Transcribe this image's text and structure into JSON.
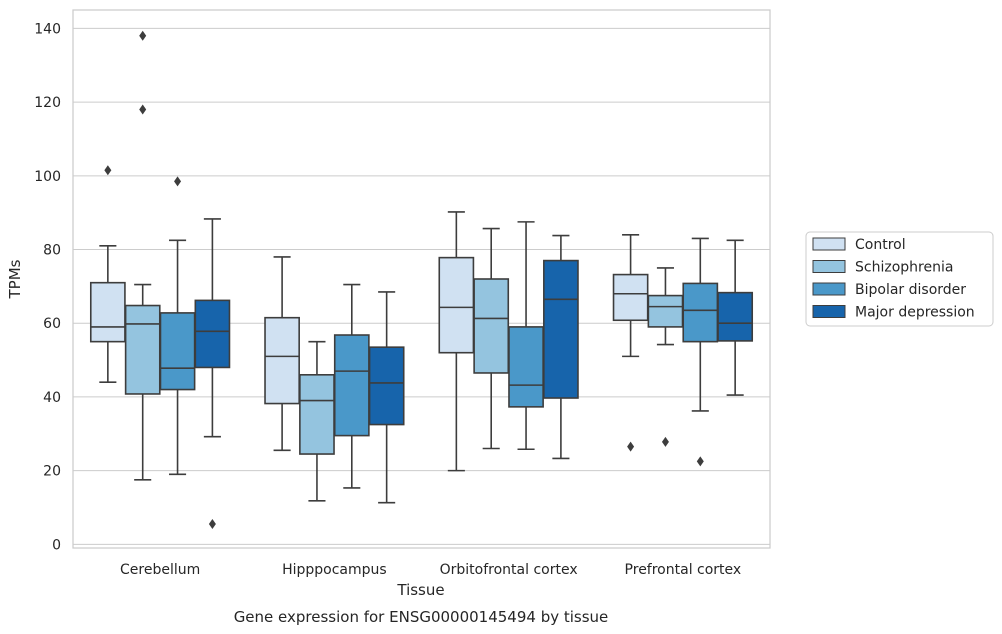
{
  "chart_data": {
    "type": "box",
    "caption": "Gene expression for ENSG00000145494 by tissue",
    "xlabel": "Tissue",
    "ylabel": "TPMs",
    "ylim": [
      -1,
      145
    ],
    "yticks": [
      0,
      20,
      40,
      60,
      80,
      100,
      120,
      140
    ],
    "grid": true,
    "legend_position": "right",
    "categories": [
      "Cerebellum",
      "Hipppocampus",
      "Orbitofrontal cortex",
      "Prefrontal cortex"
    ],
    "series": [
      {
        "name": "Control",
        "color": "#d0e1f2",
        "boxes": [
          {
            "whislo": 44,
            "q1": 55,
            "med": 59,
            "q3": 71,
            "whishi": 81,
            "fliers": [
              101.5
            ]
          },
          {
            "whislo": 25.5,
            "q1": 38.2,
            "med": 51,
            "q3": 61.5,
            "whishi": 78,
            "fliers": []
          },
          {
            "whislo": 20,
            "q1": 52,
            "med": 64.3,
            "q3": 77.8,
            "whishi": 90.2,
            "fliers": []
          },
          {
            "whislo": 51,
            "q1": 60.8,
            "med": 68,
            "q3": 73.2,
            "whishi": 84,
            "fliers": [
              26.5
            ]
          }
        ]
      },
      {
        "name": "Schizophrenia",
        "color": "#94c4df",
        "boxes": [
          {
            "whislo": 17.5,
            "q1": 40.8,
            "med": 59.8,
            "q3": 64.8,
            "whishi": 70.5,
            "fliers": [
              138,
              118
            ]
          },
          {
            "whislo": 11.8,
            "q1": 24.5,
            "med": 39,
            "q3": 46,
            "whishi": 55,
            "fliers": []
          },
          {
            "whislo": 26,
            "q1": 46.5,
            "med": 61.3,
            "q3": 72,
            "whishi": 85.7,
            "fliers": []
          },
          {
            "whislo": 54.2,
            "q1": 59,
            "med": 64.5,
            "q3": 67.5,
            "whishi": 75,
            "fliers": [
              27.8
            ]
          }
        ]
      },
      {
        "name": "Bipolar disorder",
        "color": "#4a98c9",
        "boxes": [
          {
            "whislo": 19,
            "q1": 42,
            "med": 47.8,
            "q3": 62.8,
            "whishi": 82.5,
            "fliers": [
              98.5
            ]
          },
          {
            "whislo": 15.3,
            "q1": 29.5,
            "med": 47,
            "q3": 56.8,
            "whishi": 70.5,
            "fliers": []
          },
          {
            "whislo": 25.8,
            "q1": 37.3,
            "med": 43.2,
            "q3": 59,
            "whishi": 87.5,
            "fliers": []
          },
          {
            "whislo": 36.2,
            "q1": 55,
            "med": 63.5,
            "q3": 70.8,
            "whishi": 83,
            "fliers": [
              22.5
            ]
          }
        ]
      },
      {
        "name": "Major depression",
        "color": "#1764ab",
        "boxes": [
          {
            "whislo": 29.2,
            "q1": 48,
            "med": 57.8,
            "q3": 66.2,
            "whishi": 88.3,
            "fliers": [
              5.5
            ]
          },
          {
            "whislo": 11.3,
            "q1": 32.5,
            "med": 43.8,
            "q3": 53.5,
            "whishi": 68.5,
            "fliers": []
          },
          {
            "whislo": 23.3,
            "q1": 39.7,
            "med": 66.5,
            "q3": 77,
            "whishi": 83.8,
            "fliers": []
          },
          {
            "whislo": 40.5,
            "q1": 55.2,
            "med": 60,
            "q3": 68.3,
            "whishi": 82.5,
            "fliers": []
          }
        ]
      }
    ]
  }
}
